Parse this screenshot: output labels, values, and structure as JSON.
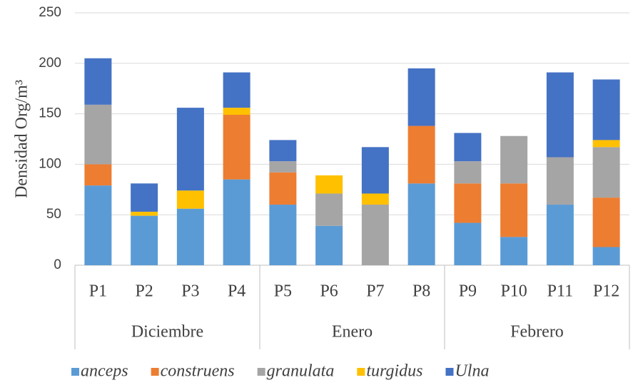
{
  "chart_data": {
    "type": "stacked_bar",
    "ylabel": "Densidad Org/m³",
    "groups": [
      {
        "label": "Diciembre",
        "categories": [
          "P1",
          "P2",
          "P3",
          "P4"
        ]
      },
      {
        "label": "Enero",
        "categories": [
          "P5",
          "P6",
          "P7",
          "P8"
        ]
      },
      {
        "label": "Febrero",
        "categories": [
          "P9",
          "P10",
          "P11",
          "P12"
        ]
      }
    ],
    "series": [
      {
        "name": "anceps",
        "color": "#5b9bd5",
        "values": [
          79,
          49,
          56,
          85,
          60,
          39,
          0,
          81,
          42,
          28,
          60,
          18
        ]
      },
      {
        "name": "construens",
        "color": "#ed7d31",
        "values": [
          21,
          0,
          0,
          64,
          32,
          0,
          0,
          57,
          39,
          53,
          0,
          49
        ]
      },
      {
        "name": "granulata",
        "color": "#a5a5a5",
        "values": [
          59,
          0,
          0,
          0,
          11,
          32,
          60,
          0,
          22,
          47,
          47,
          50
        ]
      },
      {
        "name": "turgidus",
        "color": "#ffc000",
        "values": [
          0,
          4,
          18,
          7,
          0,
          18,
          11,
          0,
          0,
          0,
          0,
          7
        ]
      },
      {
        "name": "Ulna",
        "color": "#4472c4",
        "values": [
          46,
          28,
          82,
          35,
          21,
          0,
          46,
          57,
          28,
          0,
          84,
          60
        ]
      }
    ],
    "ylim": [
      0,
      250
    ],
    "yticks": [
      0,
      50,
      100,
      150,
      200,
      250
    ],
    "grid": true,
    "legend": "bottom"
  }
}
